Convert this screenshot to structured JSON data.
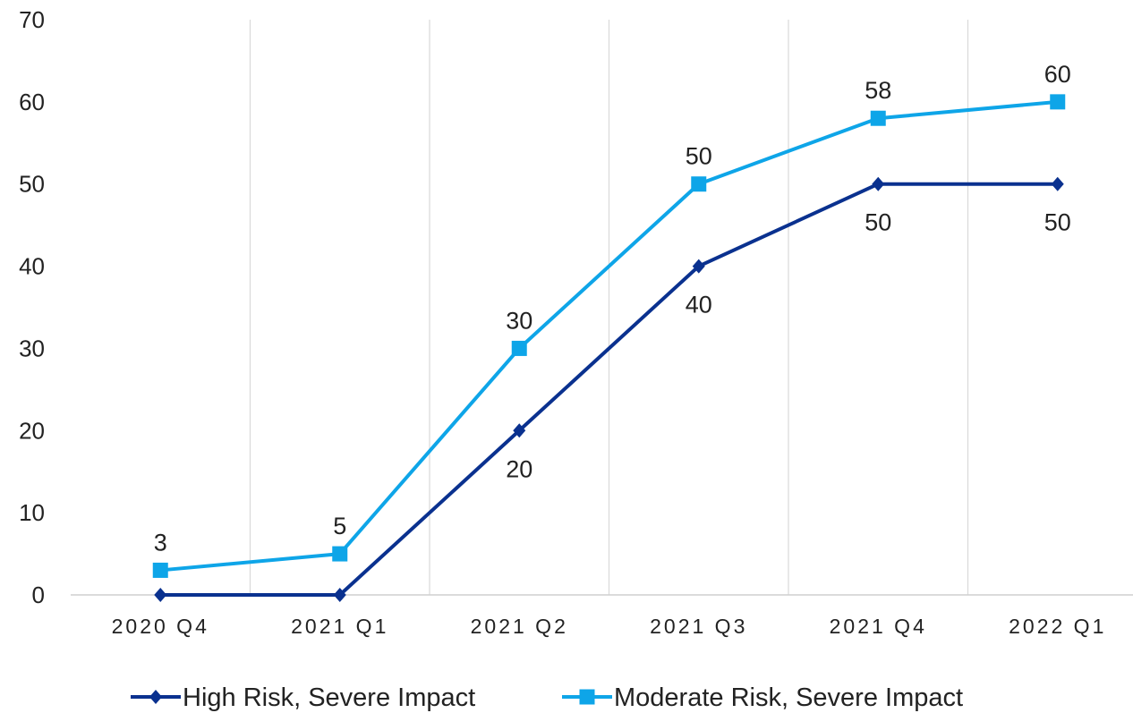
{
  "chart_data": {
    "type": "line",
    "title": "",
    "xlabel": "",
    "ylabel": "",
    "categories": [
      "2020 Q4",
      "2021 Q1",
      "2021 Q2",
      "2021 Q3",
      "2021 Q4",
      "2022 Q1"
    ],
    "ylim": [
      0,
      70
    ],
    "yticks": [
      0,
      10,
      20,
      30,
      40,
      50,
      60,
      70
    ],
    "grid": "vertical",
    "legend_position": "bottom",
    "series": [
      {
        "name": "High Risk, Severe Impact",
        "values": [
          0,
          0,
          20,
          40,
          50,
          50
        ],
        "labels": [
          "",
          "",
          "20",
          "40",
          "50",
          "50"
        ],
        "label_position": "below",
        "marker": "diamond",
        "color": "#0a318f"
      },
      {
        "name": "Moderate Risk, Severe Impact",
        "values": [
          3,
          5,
          30,
          50,
          58,
          60
        ],
        "labels": [
          "3",
          "5",
          "30",
          "50",
          "58",
          "60"
        ],
        "label_position": "above",
        "marker": "square",
        "color": "#0ea5e8"
      }
    ]
  }
}
